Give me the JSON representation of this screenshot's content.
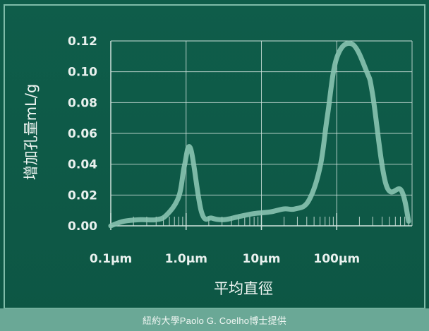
{
  "chart_data": {
    "type": "line",
    "xlabel": "平均直徑",
    "ylabel": "增加孔量mL/g",
    "x_scale": "log",
    "x_unit": "μm",
    "xlim": [
      0.1,
      1000
    ],
    "ylim": [
      0,
      0.12
    ],
    "grid": true,
    "x_ticks": [
      {
        "value": 0.1,
        "label": "0.1μm"
      },
      {
        "value": 1,
        "label": "1.0μm"
      },
      {
        "value": 10,
        "label": "10μm"
      },
      {
        "value": 100,
        "label": "100μm"
      }
    ],
    "y_ticks": [
      {
        "value": 0.12,
        "label": "0.12"
      },
      {
        "value": 0.1,
        "label": "0.10"
      },
      {
        "value": 0.08,
        "label": "0.08"
      },
      {
        "value": 0.06,
        "label": "0.06"
      },
      {
        "value": 0.04,
        "label": "0.04"
      },
      {
        "value": 0.02,
        "label": "0.02"
      },
      {
        "value": 0.0,
        "label": "0.00"
      }
    ],
    "series": [
      {
        "x": [
          0.1,
          0.15,
          0.25,
          0.4,
          0.55,
          0.8,
          0.95,
          1.15,
          1.6,
          2.2,
          3.2,
          5,
          8,
          13,
          20,
          28,
          42,
          60,
          75,
          100,
          160,
          250,
          300,
          450,
          720,
          900
        ],
        "y": [
          0.0,
          0.003,
          0.004,
          0.004,
          0.007,
          0.019,
          0.039,
          0.05,
          0.009,
          0.005,
          0.004,
          0.006,
          0.008,
          0.009,
          0.011,
          0.011,
          0.016,
          0.038,
          0.071,
          0.109,
          0.118,
          0.1,
          0.085,
          0.027,
          0.023,
          0.003
        ]
      }
    ],
    "colors": {
      "line": "#88c3b0",
      "grid": "#cfe2dc",
      "background": "#0f5d4a"
    }
  },
  "caption": "紐約大學Paolo G. Coelho博士提供"
}
